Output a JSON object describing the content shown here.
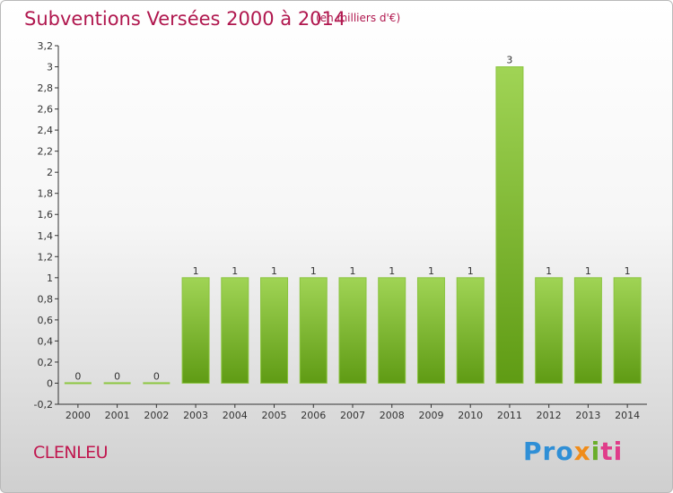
{
  "chart_data": {
    "type": "bar",
    "title": "Subventions Versées 2000 à 2014",
    "subtitle": "(en milliers d'€)",
    "categories": [
      "2000",
      "2001",
      "2002",
      "2003",
      "2004",
      "2005",
      "2006",
      "2007",
      "2008",
      "2009",
      "2010",
      "2011",
      "2012",
      "2013",
      "2014"
    ],
    "values": [
      0,
      0,
      0,
      1,
      1,
      1,
      1,
      1,
      1,
      1,
      1,
      3,
      1,
      1,
      1
    ],
    "data_labels": [
      "0",
      "0",
      "0",
      "1",
      "1",
      "1",
      "1",
      "1",
      "1",
      "1",
      "1",
      "3",
      "1",
      "1",
      "1"
    ],
    "ylim": [
      -0.2,
      3.2
    ],
    "yticks": [
      "-0,2",
      "0",
      "0,2",
      "0,4",
      "0,6",
      "0,8",
      "1",
      "1,2",
      "1,4",
      "1,6",
      "1,8",
      "2",
      "2,2",
      "2,4",
      "2,6",
      "2,8",
      "3",
      "3,2"
    ],
    "ytick_values": [
      -0.2,
      0,
      0.2,
      0.4,
      0.6,
      0.8,
      1,
      1.2,
      1.4,
      1.6,
      1.8,
      2,
      2.2,
      2.4,
      2.6,
      2.8,
      3,
      3.2
    ],
    "grid": false,
    "bar_color": "#7bbf2e",
    "xlabel": "",
    "ylabel": ""
  },
  "footer": {
    "commune": "CLENLEU",
    "logo_parts": [
      "Pro",
      "x",
      "i",
      "ti"
    ]
  },
  "colors": {
    "title": "#b0174e",
    "bar_light": "#9ad24a",
    "bar_dark": "#5e9a12"
  }
}
